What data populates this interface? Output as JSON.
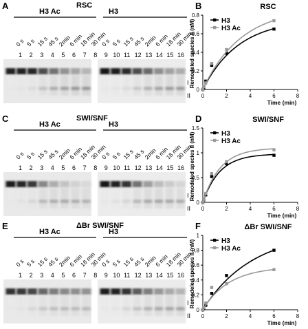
{
  "lanes": [
    "1",
    "2",
    "3",
    "4",
    "5",
    "6",
    "7",
    "8",
    "9",
    "10",
    "11",
    "12",
    "13",
    "14",
    "15",
    "16"
  ],
  "times": [
    "0 s",
    "5 s",
    "15 s",
    "45 s",
    "2min",
    "6 min",
    "18 min",
    "30 min",
    "0 s",
    "5 s",
    "15 s",
    "45 s",
    "2min",
    "6 min",
    "18 min",
    "30 min"
  ],
  "bands": {
    "one": "I",
    "two": "II"
  },
  "gels": [
    {
      "letter": "A",
      "enzyme": "RSC",
      "left_label": "H3 Ac",
      "right_label": "H3",
      "band1_intensity": [
        0.92,
        0.92,
        0.9,
        0.72,
        0.55,
        0.4,
        0.32,
        0.24,
        0.98,
        0.95,
        0.88,
        0.72,
        0.58,
        0.42,
        0.34,
        0.28
      ],
      "band2_intensity": [
        0.02,
        0.04,
        0.08,
        0.2,
        0.3,
        0.36,
        0.4,
        0.4,
        0.02,
        0.04,
        0.08,
        0.18,
        0.28,
        0.34,
        0.38,
        0.38
      ]
    },
    {
      "letter": "C",
      "enzyme": "SWI/SNF",
      "left_label": "H3 Ac",
      "right_label": "H3",
      "band1_intensity": [
        0.95,
        0.9,
        0.82,
        0.45,
        0.28,
        0.18,
        0.12,
        0.08,
        0.97,
        0.92,
        0.85,
        0.55,
        0.35,
        0.22,
        0.15,
        0.1
      ],
      "band2_intensity": [
        0.02,
        0.05,
        0.1,
        0.25,
        0.3,
        0.32,
        0.3,
        0.28,
        0.02,
        0.05,
        0.1,
        0.25,
        0.32,
        0.34,
        0.32,
        0.3
      ]
    },
    {
      "letter": "E",
      "enzyme": "ΔBr SWI/SNF",
      "left_label": "H3 Ac",
      "right_label": "H3",
      "band1_intensity": [
        0.85,
        0.82,
        0.75,
        0.6,
        0.5,
        0.45,
        0.42,
        0.4,
        0.95,
        0.92,
        0.85,
        0.65,
        0.5,
        0.38,
        0.3,
        0.25
      ],
      "band2_intensity": [
        0.02,
        0.04,
        0.1,
        0.18,
        0.22,
        0.24,
        0.24,
        0.24,
        0.02,
        0.04,
        0.1,
        0.2,
        0.28,
        0.32,
        0.34,
        0.34
      ]
    }
  ],
  "chart_data": [
    {
      "type": "line",
      "letter": "B",
      "title": "RSC",
      "xlabel": "Time (min)",
      "ylabel": "Remodeled species II (nM)",
      "xlim": [
        0,
        8
      ],
      "ylim": [
        0,
        0.8
      ],
      "xticks": [
        "0",
        "2",
        "4",
        "6",
        "8"
      ],
      "yticks": [
        "0",
        "0.2",
        "0.4",
        "0.6",
        "0.8"
      ],
      "legend": "top-left",
      "series": [
        {
          "name": "H3",
          "color": "#000000",
          "x": [
            0,
            0.083,
            0.25,
            0.75,
            2,
            6
          ],
          "y": [
            0,
            0.02,
            0.09,
            0.26,
            0.39,
            0.65
          ],
          "fit_ymax": 0.76,
          "fit_k": 0.33
        },
        {
          "name": "H3 Ac",
          "color": "#999999",
          "x": [
            0,
            0.083,
            0.25,
            0.75,
            2,
            6
          ],
          "y": [
            0,
            0.03,
            0.07,
            0.28,
            0.43,
            0.74
          ],
          "fit_ymax": 0.88,
          "fit_k": 0.31
        }
      ]
    },
    {
      "type": "line",
      "letter": "D",
      "title": "SWI/SNF",
      "xlabel": "Time (min)",
      "ylabel": "Remodeled species II (nM)",
      "xlim": [
        0,
        8
      ],
      "ylim": [
        0,
        1.5
      ],
      "xticks": [
        "0",
        "2",
        "4",
        "6",
        "8"
      ],
      "yticks": [
        "0",
        "0.5",
        "1",
        "1.5"
      ],
      "legend": "top-left",
      "series": [
        {
          "name": "H3",
          "color": "#000000",
          "x": [
            0,
            0.083,
            0.25,
            0.75,
            2,
            6
          ],
          "y": [
            0,
            0.05,
            0.15,
            0.52,
            0.78,
            0.95
          ],
          "fit_ymax": 0.98,
          "fit_k": 0.7
        },
        {
          "name": "H3 Ac",
          "color": "#999999",
          "x": [
            0,
            0.083,
            0.25,
            0.75,
            2,
            6
          ],
          "y": [
            0,
            0.06,
            0.18,
            0.58,
            0.82,
            1.06
          ],
          "fit_ymax": 1.1,
          "fit_k": 0.68
        }
      ]
    },
    {
      "type": "line",
      "letter": "F",
      "title": "ΔBr SWI/SNF",
      "xlabel": "Time (min)",
      "ylabel": "Remodeled species II (nM)",
      "xlim": [
        0,
        8
      ],
      "ylim": [
        0,
        1
      ],
      "xticks": [
        "0",
        "2",
        "4",
        "6",
        "8"
      ],
      "yticks": [
        "0",
        "0.2",
        "0.4",
        "0.6",
        "0.8",
        "1"
      ],
      "legend": "top-left",
      "series": [
        {
          "name": "H3",
          "color": "#000000",
          "x": [
            0,
            0.083,
            0.25,
            0.75,
            2,
            6
          ],
          "y": [
            0,
            0.02,
            0.06,
            0.22,
            0.46,
            0.8
          ],
          "fit_ymax": 1.05,
          "fit_k": 0.24
        },
        {
          "name": "H3 Ac",
          "color": "#999999",
          "x": [
            0,
            0.083,
            0.25,
            0.75,
            2,
            6
          ],
          "y": [
            0,
            0.03,
            0.09,
            0.3,
            0.35,
            0.54
          ],
          "fit_ymax": 0.58,
          "fit_k": 0.45
        }
      ]
    }
  ]
}
